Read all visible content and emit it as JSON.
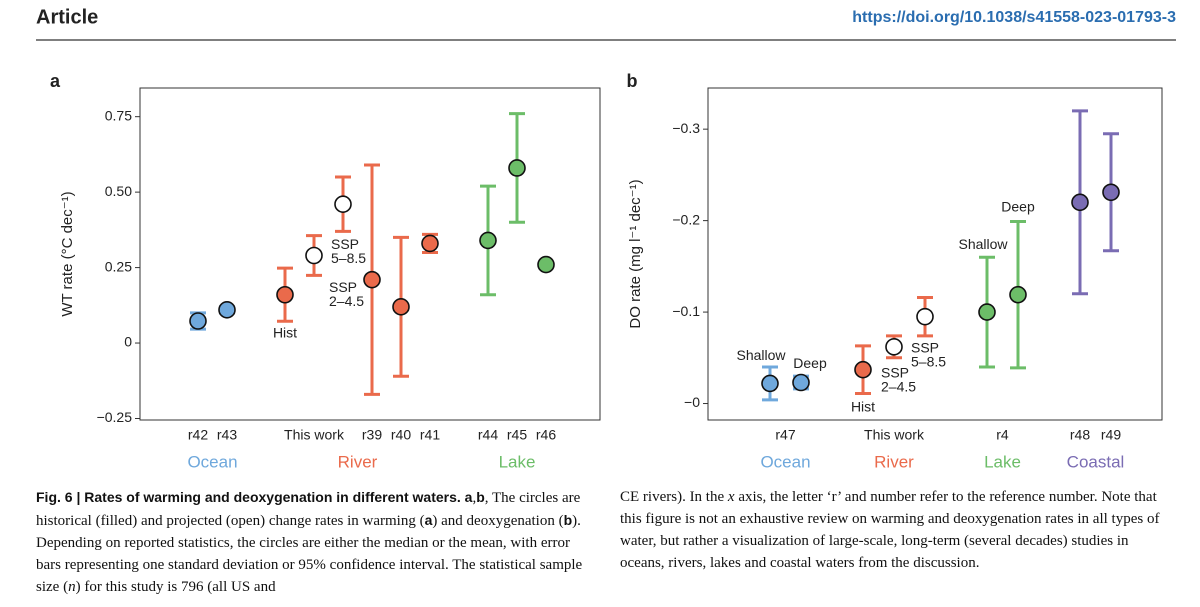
{
  "header": {
    "title": "Article",
    "doi": "https://doi.org/10.1038/s41558-023-01793-3"
  },
  "chart_data": [
    {
      "panel": "a",
      "type": "errorbar",
      "ylabel": "WT rate (°C dec⁻¹)",
      "ylim": [
        -0.255,
        0.845
      ],
      "yticks": [
        0.75,
        {
          "value": 0.5,
          "label": "0.50"
        },
        0.25,
        0,
        {
          "value": -0.25,
          "label": "−0.25"
        }
      ],
      "groups": [
        {
          "name": "Ocean",
          "color": "#6fa8dc",
          "refs": [
            {
              "label": "r42",
              "points": [
                {
                  "value": 0.073,
                  "error": 0.027,
                  "filled": true
                }
              ]
            },
            {
              "label": "r43",
              "points": [
                {
                  "value": 0.11,
                  "error": 0.01,
                  "filled": true
                }
              ]
            }
          ]
        },
        {
          "name": "River",
          "color": "#ea6a4b",
          "refs": [
            {
              "label": "This work",
              "points": [
                {
                  "label": [
                    "Hist"
                  ],
                  "value": 0.16,
                  "error": 0.088,
                  "filled": true
                },
                {
                  "label": [
                    "SSP",
                    "2–4.5"
                  ],
                  "value": 0.29,
                  "error": 0.066,
                  "filled": false
                },
                {
                  "label": [
                    "SSP",
                    "5–8.5"
                  ],
                  "value": 0.46,
                  "error": 0.09,
                  "filled": false
                }
              ]
            },
            {
              "label": "r39",
              "points": [
                {
                  "value": 0.21,
                  "error": 0.38,
                  "filled": true
                }
              ]
            },
            {
              "label": "r40",
              "points": [
                {
                  "value": 0.12,
                  "error": 0.23,
                  "filled": true
                }
              ]
            },
            {
              "label": "r41",
              "points": [
                {
                  "value": 0.33,
                  "error": 0.03,
                  "filled": true
                }
              ]
            }
          ]
        },
        {
          "name": "Lake",
          "color": "#6cbd68",
          "refs": [
            {
              "label": "r44",
              "points": [
                {
                  "value": 0.34,
                  "error": 0.18,
                  "filled": true
                }
              ]
            },
            {
              "label": "r45",
              "points": [
                {
                  "value": 0.58,
                  "error": 0.18,
                  "filled": true
                }
              ]
            },
            {
              "label": "r46",
              "points": [
                {
                  "value": 0.26,
                  "error": 0.005,
                  "filled": true
                }
              ]
            }
          ]
        }
      ]
    },
    {
      "panel": "b",
      "type": "errorbar",
      "ylabel": "DO rate (mg l⁻¹ dec⁻¹)",
      "ylim": [
        0.018,
        -0.345
      ],
      "yticks": [
        {
          "value": -0.3,
          "label": "−0.3"
        },
        {
          "value": -0.2,
          "label": "−0.2"
        },
        {
          "value": -0.1,
          "label": "−0.1"
        },
        {
          "value": 0,
          "label": "−0"
        }
      ],
      "groups": [
        {
          "name": "Ocean",
          "color": "#6fa8dc",
          "refs": [
            {
              "label": "r47",
              "points": [
                {
                  "label": [
                    "Shallow"
                  ],
                  "value": -0.022,
                  "error": 0.018,
                  "filled": true
                },
                {
                  "label": [
                    "Deep"
                  ],
                  "value": -0.023,
                  "error": 0.007,
                  "filled": true
                }
              ]
            }
          ]
        },
        {
          "name": "River",
          "color": "#ea6a4b",
          "refs": [
            {
              "label": "This work",
              "points": [
                {
                  "label": [
                    "Hist"
                  ],
                  "value": -0.037,
                  "error": 0.026,
                  "filled": true
                },
                {
                  "label": [
                    "SSP",
                    "2–4.5"
                  ],
                  "value": -0.062,
                  "error": 0.012,
                  "filled": false
                },
                {
                  "label": [
                    "SSP",
                    "5–8.5"
                  ],
                  "value": -0.095,
                  "error": 0.021,
                  "filled": false
                }
              ]
            }
          ]
        },
        {
          "name": "Lake",
          "color": "#6cbd68",
          "refs": [
            {
              "label": "r4",
              "points": [
                {
                  "label": [
                    "Shallow"
                  ],
                  "value": -0.1,
                  "error": 0.06,
                  "filled": true
                },
                {
                  "label": [
                    "Deep"
                  ],
                  "value": -0.119,
                  "error": 0.08,
                  "filled": true
                }
              ]
            }
          ]
        },
        {
          "name": "Coastal",
          "color": "#7a6cb3",
          "refs": [
            {
              "label": "r48",
              "points": [
                {
                  "value": -0.22,
                  "error": 0.1,
                  "filled": true
                }
              ]
            },
            {
              "label": "r49",
              "points": [
                {
                  "value": -0.231,
                  "error": 0.064,
                  "filled": true
                }
              ]
            }
          ]
        }
      ]
    }
  ],
  "caption": {
    "left": [
      {
        "text": "Fig. 6 | Rates of warming and deoxygenation in different waters. a",
        "style": "b"
      },
      {
        "text": ",",
        "style": ""
      },
      {
        "text": "b",
        "style": "b"
      },
      {
        "text": ", The circles are historical (filled) and projected (open) change rates in warming (",
        "style": ""
      },
      {
        "text": "a",
        "style": "b"
      },
      {
        "text": ") and deoxygenation (",
        "style": ""
      },
      {
        "text": "b",
        "style": "b"
      },
      {
        "text": "). Depending on reported statistics, the circles are either the median or the mean, with error bars representing one standard deviation or 95% confidence interval. The statistical sample size (",
        "style": ""
      },
      {
        "text": "n",
        "style": "i"
      },
      {
        "text": ") for this study is 796 (all US and",
        "style": ""
      }
    ],
    "right": [
      {
        "text": "CE rivers). In the ",
        "style": ""
      },
      {
        "text": "x",
        "style": "i"
      },
      {
        "text": " axis, the letter ‘r’ and number refer to the reference number. Note that this figure is not an exhaustive review on warming and deoxygenation rates in all types of water, but rather a visualization of large-scale, long-term (several decades) studies in oceans, rivers, lakes and coastal waters from the discussion.",
        "style": ""
      }
    ]
  }
}
